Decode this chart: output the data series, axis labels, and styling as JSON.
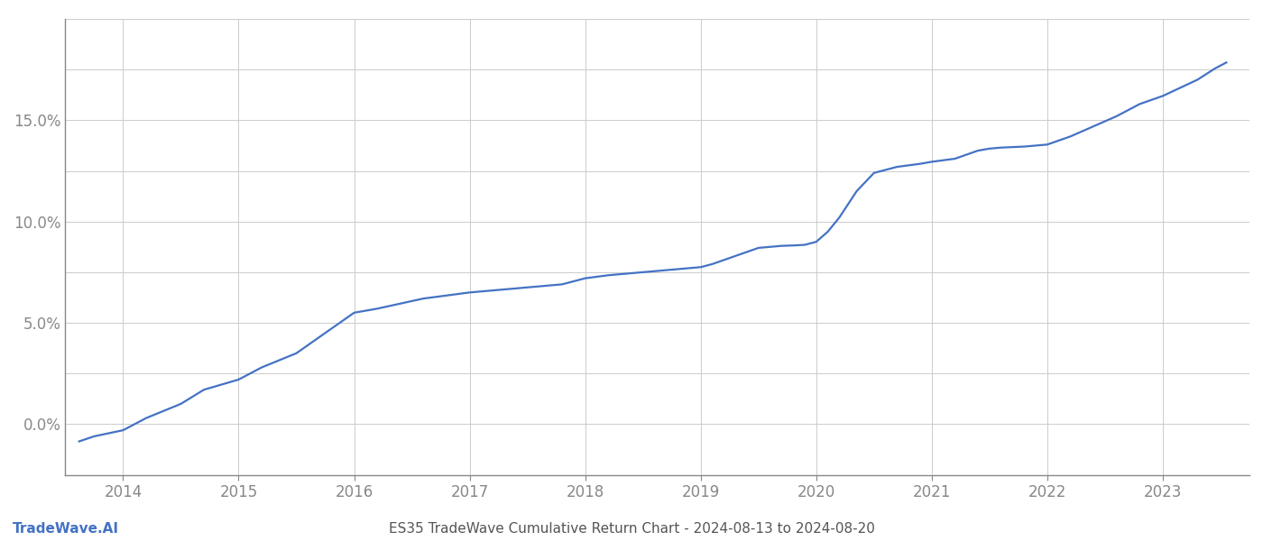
{
  "title": "ES35 TradeWave Cumulative Return Chart - 2024-08-13 to 2024-08-20",
  "watermark": "TradeWave.AI",
  "line_color": "#4472c4",
  "background_color": "#ffffff",
  "grid_color": "#cccccc",
  "x_years": [
    2013.62,
    2013.75,
    2014.0,
    2014.2,
    2014.5,
    2014.7,
    2015.0,
    2015.2,
    2015.5,
    2015.7,
    2016.0,
    2016.1,
    2016.2,
    2016.4,
    2016.6,
    2016.8,
    2017.0,
    2017.2,
    2017.4,
    2017.6,
    2017.8,
    2018.0,
    2018.2,
    2018.4,
    2018.6,
    2018.8,
    2019.0,
    2019.1,
    2019.3,
    2019.5,
    2019.6,
    2019.7,
    2019.8,
    2019.9,
    2020.0,
    2020.1,
    2020.2,
    2020.35,
    2020.5,
    2020.7,
    2020.9,
    2021.0,
    2021.2,
    2021.4,
    2021.5,
    2021.6,
    2021.8,
    2022.0,
    2022.2,
    2022.4,
    2022.6,
    2022.8,
    2023.0,
    2023.15,
    2023.3,
    2023.45,
    2023.55
  ],
  "y_values": [
    -0.85,
    -0.6,
    -0.3,
    0.3,
    1.0,
    1.7,
    2.2,
    2.8,
    3.5,
    4.3,
    5.5,
    5.6,
    5.7,
    5.95,
    6.2,
    6.35,
    6.5,
    6.6,
    6.7,
    6.8,
    6.9,
    7.2,
    7.35,
    7.45,
    7.55,
    7.65,
    7.75,
    7.9,
    8.3,
    8.7,
    8.75,
    8.8,
    8.82,
    8.85,
    9.0,
    9.5,
    10.2,
    11.5,
    12.4,
    12.7,
    12.85,
    12.95,
    13.1,
    13.5,
    13.6,
    13.65,
    13.7,
    13.8,
    14.2,
    14.7,
    15.2,
    15.8,
    16.2,
    16.6,
    17.0,
    17.55,
    17.85
  ],
  "xlim": [
    2013.5,
    2023.75
  ],
  "ylim": [
    -2.5,
    20.0
  ],
  "yticks_positions": [
    -2.5,
    0.0,
    2.5,
    5.0,
    7.5,
    10.0,
    12.5,
    15.0,
    17.5,
    20.0
  ],
  "yticks_labeled": [
    0.0,
    5.0,
    10.0,
    15.0
  ],
  "xticks": [
    2014,
    2015,
    2016,
    2017,
    2018,
    2019,
    2020,
    2021,
    2022,
    2023
  ],
  "tick_label_color": "#888888",
  "axis_color": "#888888",
  "title_color": "#555555",
  "watermark_color": "#4472c4",
  "line_width": 1.6,
  "title_fontsize": 11,
  "tick_fontsize": 12,
  "watermark_fontsize": 11
}
